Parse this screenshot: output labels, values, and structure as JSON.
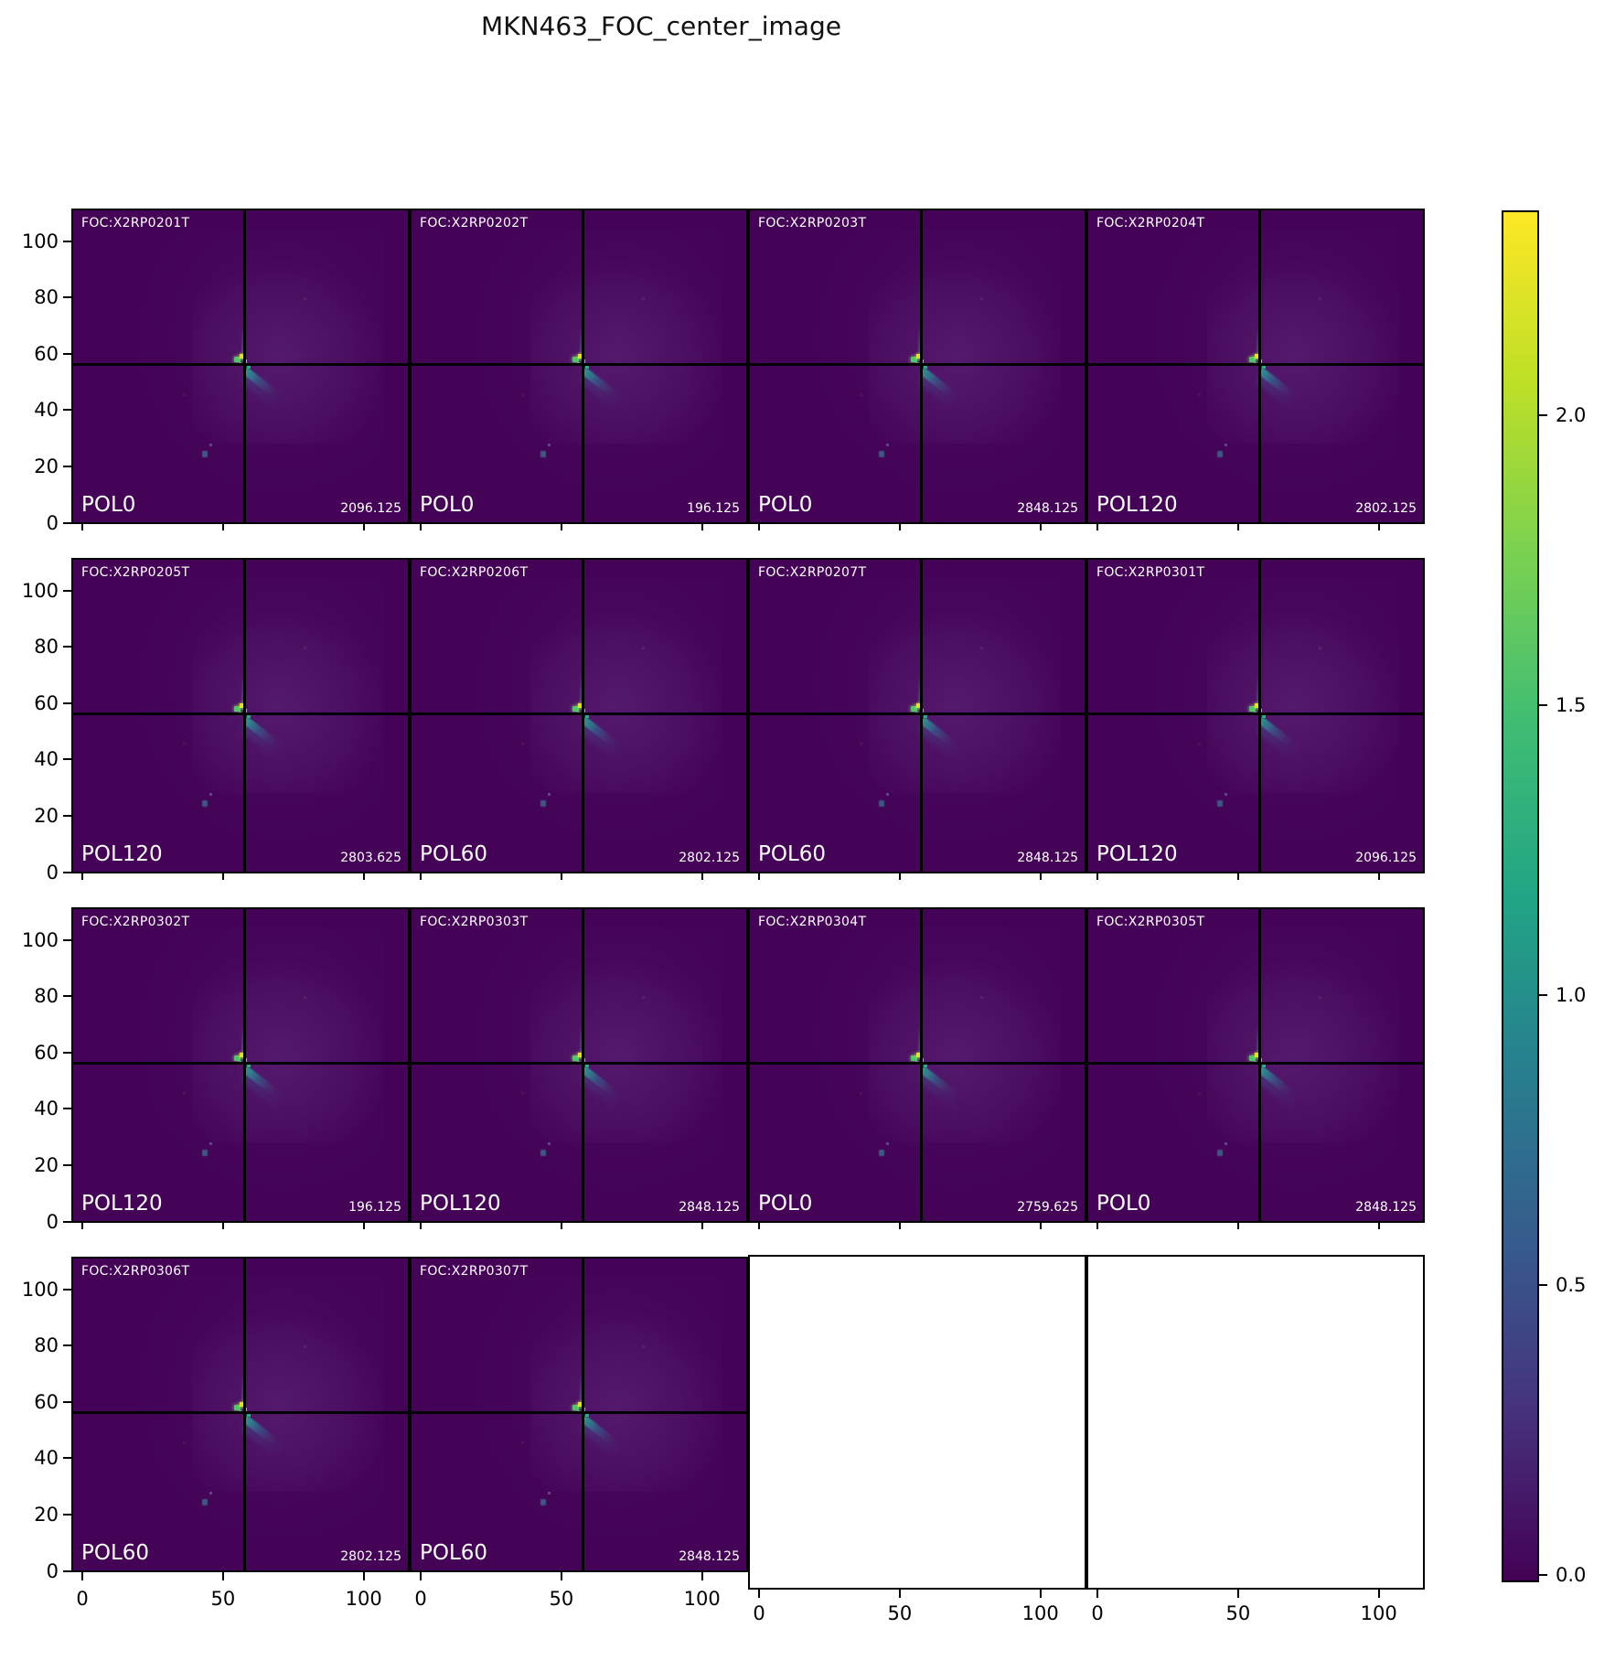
{
  "title": "MKN463_FOC_center_image",
  "axes": {
    "y_ticks": [
      "0",
      "20",
      "40",
      "60",
      "80",
      "100"
    ],
    "x_ticks": [
      "0",
      "50",
      "100"
    ]
  },
  "colorbar": {
    "ticks": [
      "2.0",
      "1.5",
      "1.0",
      "0.5",
      "0.0"
    ],
    "colormap": "viridis",
    "color_min": "#440154",
    "color_mid": "#21918c",
    "color_max": "#fde725"
  },
  "chart_data": {
    "type": "heatmap",
    "title": "MKN463_FOC_center_image",
    "colormap": "viridis",
    "colorbar_ticks": [
      0.0,
      0.5,
      1.0,
      1.5,
      2.0
    ],
    "colorbar_range": [
      0.0,
      2.35
    ],
    "x_ticks": [
      0,
      50,
      100
    ],
    "y_ticks": [
      0,
      20,
      40,
      60,
      80,
      100
    ],
    "x_range": [
      -0.5,
      111.5
    ],
    "y_range": [
      -0.5,
      111.5
    ],
    "grid": {
      "rows": 4,
      "cols": 4,
      "filled_panels": 14,
      "empty_panels": 2
    },
    "crosshair": {
      "x": 57,
      "y": 57
    },
    "source_peak": {
      "x": 56,
      "y": 57
    },
    "secondary_source": {
      "x": 43,
      "y": 25
    },
    "panels": [
      {
        "row": 0,
        "col": 0,
        "foc": "FOC:X2RP0201T",
        "pol": "POL0",
        "value": 2096.125
      },
      {
        "row": 0,
        "col": 1,
        "foc": "FOC:X2RP0202T",
        "pol": "POL0",
        "value": 196.125
      },
      {
        "row": 0,
        "col": 2,
        "foc": "FOC:X2RP0203T",
        "pol": "POL0",
        "value": 2848.125
      },
      {
        "row": 0,
        "col": 3,
        "foc": "FOC:X2RP0204T",
        "pol": "POL120",
        "value": 2802.125
      },
      {
        "row": 1,
        "col": 0,
        "foc": "FOC:X2RP0205T",
        "pol": "POL120",
        "value": 2803.625
      },
      {
        "row": 1,
        "col": 1,
        "foc": "FOC:X2RP0206T",
        "pol": "POL60",
        "value": 2802.125
      },
      {
        "row": 1,
        "col": 2,
        "foc": "FOC:X2RP0207T",
        "pol": "POL60",
        "value": 2848.125
      },
      {
        "row": 1,
        "col": 3,
        "foc": "FOC:X2RP0301T",
        "pol": "POL120",
        "value": 2096.125
      },
      {
        "row": 2,
        "col": 0,
        "foc": "FOC:X2RP0302T",
        "pol": "POL120",
        "value": 196.125
      },
      {
        "row": 2,
        "col": 1,
        "foc": "FOC:X2RP0303T",
        "pol": "POL120",
        "value": 2848.125
      },
      {
        "row": 2,
        "col": 2,
        "foc": "FOC:X2RP0304T",
        "pol": "POL0",
        "value": 2759.625
      },
      {
        "row": 2,
        "col": 3,
        "foc": "FOC:X2RP0305T",
        "pol": "POL0",
        "value": 2848.125
      },
      {
        "row": 3,
        "col": 0,
        "foc": "FOC:X2RP0306T",
        "pol": "POL60",
        "value": 2802.125
      },
      {
        "row": 3,
        "col": 1,
        "foc": "FOC:X2RP0307T",
        "pol": "POL60",
        "value": 2848.125
      }
    ],
    "empty_cells": [
      {
        "row": 3,
        "col": 2
      },
      {
        "row": 3,
        "col": 3
      }
    ]
  }
}
